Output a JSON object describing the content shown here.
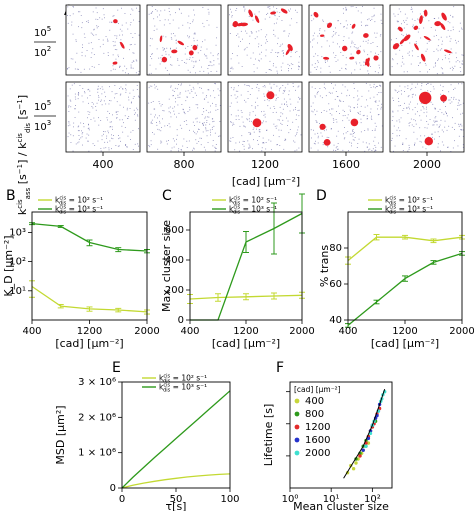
{
  "figure": {
    "panel_labels": [
      "A",
      "B",
      "C",
      "D",
      "E",
      "F"
    ]
  },
  "colors": {
    "light_green": "#c3d932",
    "dark_green": "#2e9a1c",
    "red_cluster": "#e8202a",
    "noise": "#3d3d8a",
    "F_400": "#c7d63a",
    "F_800": "#2e9a1c",
    "F_1200": "#e32b2b",
    "F_1600": "#2633cc",
    "F_2000": "#3fe0d0"
  },
  "panelA": {
    "row_labels": [
      "10^5 / 10^2",
      "10^5 / 10^3"
    ],
    "row_top_num": "10",
    "row_top_sup": "5",
    "row_top_den": "10",
    "row_top_den_sup": "2",
    "row_bot_num": "10",
    "row_bot_sup": "5",
    "row_bot_den": "10",
    "row_bot_den_sup": "3",
    "ylabel": "kass^cis [s^-1] / kdis^cis [s^-1]",
    "columns": [
      "400",
      "800",
      "1200",
      "1600",
      "2000"
    ],
    "xlabel": "[cad] [µm⁻²]",
    "clusters_top": [
      3,
      6,
      9,
      12,
      14
    ],
    "clusters_bottom": [
      0,
      0,
      2,
      3,
      4
    ]
  },
  "chart_data": [
    {
      "id": "B",
      "type": "line",
      "title": "",
      "xlabel": "[cad] [µm⁻²]",
      "ylabel": "K_D [µm⁻²]",
      "yscale": "log",
      "xlim": [
        400,
        2000
      ],
      "ylim": [
        1,
        5000
      ],
      "x_ticks": [
        "400",
        "1200",
        "2000"
      ],
      "y_ticks": [
        "10¹",
        "10²",
        "10³"
      ],
      "legend_position": "top",
      "series": [
        {
          "name": "k_dis^cis = 10² s⁻¹",
          "x": [
            400,
            800,
            1200,
            1600,
            2000
          ],
          "values": [
            14,
            3.0,
            2.4,
            2.2,
            1.9
          ],
          "errors": [
            8,
            0.4,
            0.4,
            0.3,
            0.3
          ]
        },
        {
          "name": "k_dis^cis = 10³ s⁻¹",
          "x": [
            400,
            800,
            1200,
            1600,
            2000
          ],
          "values": [
            2000,
            1600,
            450,
            260,
            230
          ],
          "errors": [
            150,
            120,
            100,
            40,
            30
          ]
        }
      ]
    },
    {
      "id": "C",
      "type": "line",
      "title": "",
      "xlabel": "[cad] [µm⁻²]",
      "ylabel": "Max. cluster size",
      "xlim": [
        400,
        2000
      ],
      "ylim": [
        0,
        720
      ],
      "x_ticks": [
        "400",
        "1200",
        "2000"
      ],
      "y_ticks": [
        "0",
        "200",
        "400",
        "600"
      ],
      "legend_position": "top",
      "series": [
        {
          "name": "k_dis^cis = 10² s⁻¹",
          "x": [
            400,
            800,
            1200,
            1600,
            2000
          ],
          "values": [
            140,
            150,
            155,
            160,
            165
          ],
          "errors": [
            30,
            25,
            20,
            20,
            20
          ]
        },
        {
          "name": "k_dis^cis = 10³ s⁻¹",
          "x": [
            400,
            800,
            1200,
            1600,
            2000
          ],
          "values": [
            0,
            0,
            520,
            610,
            710
          ],
          "errors": [
            0,
            0,
            70,
            170,
            130
          ]
        }
      ]
    },
    {
      "id": "D",
      "type": "line",
      "title": "",
      "xlabel": "[cad] [µm⁻²]",
      "ylabel": "% trans",
      "xlim": [
        400,
        2000
      ],
      "ylim": [
        40,
        100
      ],
      "x_ticks": [
        "400",
        "1200",
        "2000"
      ],
      "y_ticks": [
        "40",
        "60",
        "80"
      ],
      "legend_position": "top",
      "series": [
        {
          "name": "k_dis^cis = 10² s⁻¹",
          "x": [
            400,
            800,
            1200,
            1600,
            2000
          ],
          "values": [
            73,
            86,
            86,
            84,
            86
          ],
          "errors": [
            2,
            1.5,
            1,
            1,
            1
          ]
        },
        {
          "name": "k_dis^cis = 10³ s⁻¹",
          "x": [
            400,
            800,
            1200,
            1600,
            2000
          ],
          "values": [
            37,
            50,
            63,
            72,
            77
          ],
          "errors": [
            1,
            1,
            1.5,
            1,
            1
          ]
        }
      ]
    },
    {
      "id": "E",
      "type": "line",
      "title": "",
      "xlabel": "τ[s]",
      "ylabel": "MSD [µm²]",
      "xlim": [
        0,
        100
      ],
      "ylim": [
        0,
        3000000
      ],
      "x_ticks": [
        "0",
        "50",
        "100"
      ],
      "y_ticks": [
        "0",
        "1 × 10⁶",
        "2 × 10⁶",
        "3 × 10⁶"
      ],
      "legend_position": "top",
      "series": [
        {
          "name": "k_dis^cis = 10² s⁻¹",
          "x": [
            0,
            10,
            20,
            30,
            40,
            50,
            60,
            70,
            80,
            90,
            100
          ],
          "values": [
            0,
            80000,
            140000,
            190000,
            235000,
            275000,
            310000,
            340000,
            365000,
            385000,
            400000
          ]
        },
        {
          "name": "k_dis^cis = 10³ s⁻¹",
          "x": [
            0,
            10,
            20,
            30,
            40,
            50,
            60,
            70,
            80,
            90,
            100
          ],
          "values": [
            0,
            300000,
            580000,
            860000,
            1130000,
            1400000,
            1670000,
            1940000,
            2210000,
            2480000,
            2750000
          ]
        }
      ]
    },
    {
      "id": "F",
      "type": "scatter",
      "title": "",
      "xlabel": "Mean cluster size",
      "ylabel": "Lifetime [s]",
      "xscale": "log",
      "yscale": "log",
      "xlim": [
        1,
        300
      ],
      "ylim": [
        1,
        2000
      ],
      "x_ticks": [
        "10⁰",
        "10¹",
        "10²"
      ],
      "y_ticks": [
        "10¹",
        "10²",
        "10³"
      ],
      "legend_title": "[cad] [µm⁻²]",
      "legend_position": "top-left",
      "series": [
        {
          "name": "400",
          "points": [
            [
              30,
              5
            ],
            [
              40,
              6
            ],
            [
              50,
              10
            ],
            [
              60,
              15
            ],
            [
              45,
              8
            ],
            [
              35,
              4
            ],
            [
              70,
              20
            ],
            [
              55,
              12
            ],
            [
              80,
              25
            ],
            [
              25,
              3
            ]
          ]
        },
        {
          "name": "800",
          "points": [
            [
              40,
              8
            ],
            [
              60,
              20
            ],
            [
              80,
              40
            ],
            [
              100,
              80
            ],
            [
              70,
              30
            ],
            [
              90,
              60
            ],
            [
              120,
              120
            ],
            [
              50,
              12
            ]
          ]
        },
        {
          "name": "1200",
          "points": [
            [
              50,
              10
            ],
            [
              80,
              40
            ],
            [
              110,
              100
            ],
            [
              130,
              200
            ],
            [
              100,
              80
            ],
            [
              150,
              300
            ],
            [
              70,
              25
            ],
            [
              90,
              60
            ]
          ]
        },
        {
          "name": "1600",
          "points": [
            [
              60,
              15
            ],
            [
              90,
              60
            ],
            [
              120,
              150
            ],
            [
              150,
              400
            ],
            [
              100,
              90
            ],
            [
              140,
              250
            ],
            [
              80,
              35
            ],
            [
              130,
              180
            ]
          ]
        },
        {
          "name": "2000",
          "points": [
            [
              70,
              20
            ],
            [
              100,
              90
            ],
            [
              140,
              250
            ],
            [
              170,
              600
            ],
            [
              110,
              120
            ],
            [
              160,
              500
            ],
            [
              90,
              50
            ],
            [
              180,
              800
            ],
            [
              200,
              1000
            ]
          ]
        }
      ],
      "trend": {
        "x": [
          20,
          60,
          100,
          150,
          200
        ],
        "values": [
          2,
          20,
          90,
          400,
          1200
        ]
      }
    }
  ],
  "legend": {
    "entry_1": "= 10² s⁻¹",
    "entry_2": "= 10³ s⁻¹",
    "f_title": "[cad] [µm⁻²]",
    "f_400": "400",
    "f_800": "800",
    "f_1200": "1200",
    "f_1600": "1600",
    "f_2000": "2000"
  }
}
